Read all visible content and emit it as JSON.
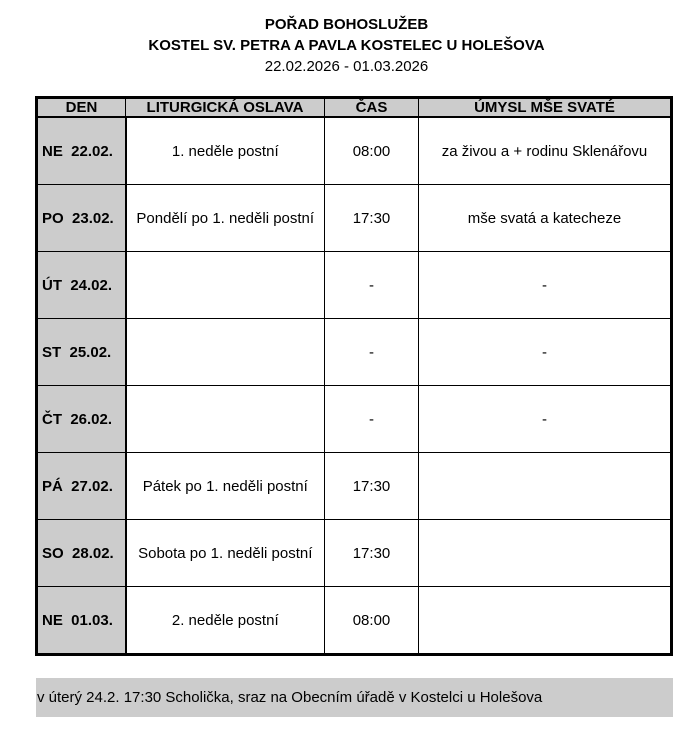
{
  "header": {
    "title": "POŘAD BOHOSLUŽEB",
    "church": "KOSTEL SV. PETRA A PAVLA KOSTELEC U HOLEŠOVA",
    "dates": "22.02.2026 - 01.03.2026"
  },
  "table": {
    "columns": [
      "DEN",
      "LITURGICKÁ OSLAVA",
      "ČAS",
      "ÚMYSL MŠE SVATÉ"
    ],
    "rows": [
      {
        "day": "NE  22.02.",
        "celebration": "1. neděle postní",
        "time": "08:00",
        "intention": "za živou a + rodinu Sklenářovu"
      },
      {
        "day": "PO  23.02.",
        "celebration": "Pondělí po 1. neděli postní",
        "time": "17:30",
        "intention": "mše svatá a katecheze"
      },
      {
        "day": "ÚT  24.02.",
        "celebration": "",
        "time": "-",
        "intention": "-"
      },
      {
        "day": "ST  25.02.",
        "celebration": "",
        "time": "-",
        "intention": "-"
      },
      {
        "day": "ČT  26.02.",
        "celebration": "",
        "time": "-",
        "intention": "-"
      },
      {
        "day": "PÁ  27.02.",
        "celebration": "Pátek po 1. neděli postní",
        "time": "17:30",
        "intention": ""
      },
      {
        "day": "SO  28.02.",
        "celebration": "Sobota po 1. neděli postní",
        "time": "17:30",
        "intention": ""
      },
      {
        "day": "NE  01.03.",
        "celebration": "2. neděle postní",
        "time": "08:00",
        "intention": ""
      }
    ]
  },
  "note": "v úterý 24.2. 17:30 Scholička, sraz na Obecním úřadě v Kostelci u Holešova"
}
